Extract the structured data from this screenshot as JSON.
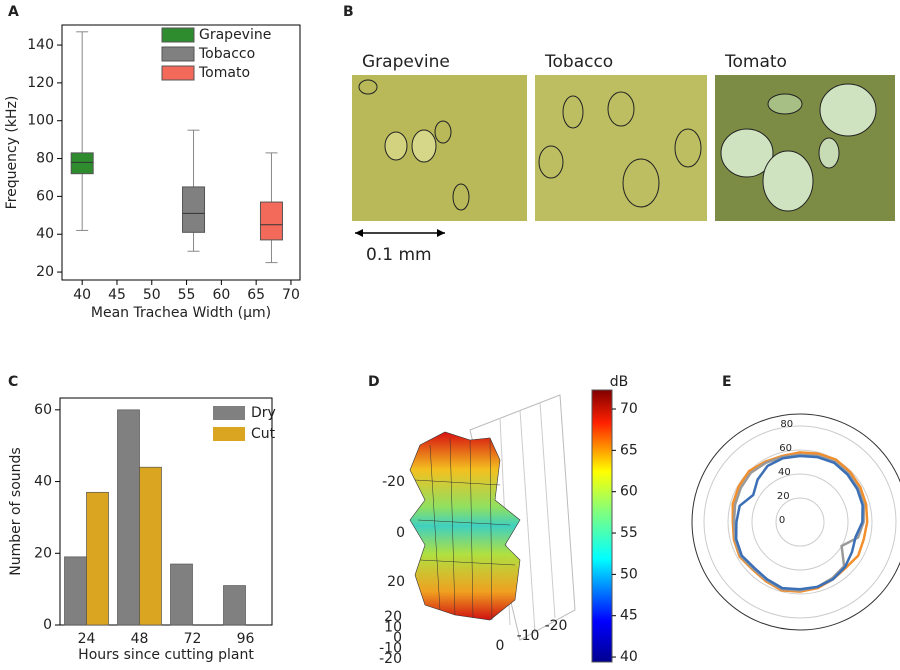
{
  "chart_data": [
    {
      "type": "box",
      "label": "A",
      "ylabel": "Frequency (kHz)",
      "xlabel": "Mean Trachea Width (μm)",
      "xlim": [
        37.1,
        71.3
      ],
      "xticks": [
        40,
        45,
        50,
        55,
        60,
        65,
        70
      ],
      "ylim": [
        15.8,
        150.6
      ],
      "yticks": [
        20,
        40,
        60,
        80,
        100,
        120,
        140
      ],
      "series": [
        {
          "name": "Grapevine",
          "color": "#2e8b2e",
          "x": 40,
          "whislo": 42,
          "q1": 72,
          "med": 78,
          "q3": 83,
          "whishi": 147
        },
        {
          "name": "Tobacco",
          "color": "#808080",
          "x": 56,
          "whislo": 31,
          "q1": 41,
          "med": 51,
          "q3": 65,
          "whishi": 95
        },
        {
          "name": "Tomato",
          "color": "#f46a5a",
          "x": 67.2,
          "whislo": 25,
          "q1": 37,
          "med": 45,
          "q3": 57,
          "whishi": 83
        }
      ]
    },
    {
      "type": "bar",
      "label": "C",
      "ylabel": "Number of sounds",
      "xlabel": "Hours since cutting plant",
      "categories": [
        "24",
        "48",
        "72",
        "96"
      ],
      "ylim": [
        0,
        63.3
      ],
      "yticks": [
        0,
        20,
        40,
        60
      ],
      "series": [
        {
          "name": "Dry",
          "color": "#808080",
          "values": [
            19,
            60,
            17,
            11
          ]
        },
        {
          "name": "Cut",
          "color": "#daa520",
          "values": [
            37,
            44,
            null,
            null
          ]
        }
      ]
    },
    {
      "type": "surface",
      "label": "D",
      "clabel": "dB",
      "clim": [
        39.4,
        72.3
      ],
      "cticks": [
        40,
        45,
        50,
        55,
        60,
        65,
        70
      ],
      "zticks": [
        -20,
        0,
        20
      ],
      "xticks": [
        20,
        10,
        0,
        -10,
        -20
      ],
      "yticks": [
        0,
        -10,
        -20
      ]
    },
    {
      "type": "polar",
      "label": "E",
      "rlim": [
        0,
        90
      ],
      "rticks": [
        0,
        20,
        40,
        60,
        80
      ],
      "theta": [
        0,
        15,
        30,
        45,
        60,
        75,
        90,
        105,
        120,
        135,
        150,
        165,
        180,
        195,
        210,
        225,
        240,
        255,
        270,
        285,
        300,
        315,
        330,
        345
      ],
      "series": [
        {
          "color": "#f28e2b",
          "values": [
            58,
            59,
            60,
            59,
            58,
            57,
            56,
            55,
            56,
            54,
            55,
            57,
            58,
            59,
            57,
            56,
            58,
            57,
            56,
            58,
            59,
            60,
            58,
            57
          ]
        },
        {
          "color": "#9a9a9a",
          "values": [
            56,
            57,
            58,
            57,
            56,
            55,
            53,
            50,
            40,
            52,
            54,
            56,
            57,
            58,
            56,
            55,
            57,
            56,
            55,
            56,
            57,
            58,
            57,
            56
          ]
        },
        {
          "color": "#3b6fb6",
          "values": [
            55,
            56,
            57,
            56,
            55,
            54,
            52,
            48,
            50,
            53,
            55,
            56,
            56,
            57,
            55,
            54,
            56,
            55,
            53,
            52,
            45,
            50,
            54,
            55
          ]
        }
      ]
    }
  ],
  "panel_b": {
    "label": "B",
    "images": [
      {
        "label": "Grapevine"
      },
      {
        "label": "Tobacco"
      },
      {
        "label": "Tomato"
      }
    ],
    "scale_bar": "0.1 mm"
  }
}
